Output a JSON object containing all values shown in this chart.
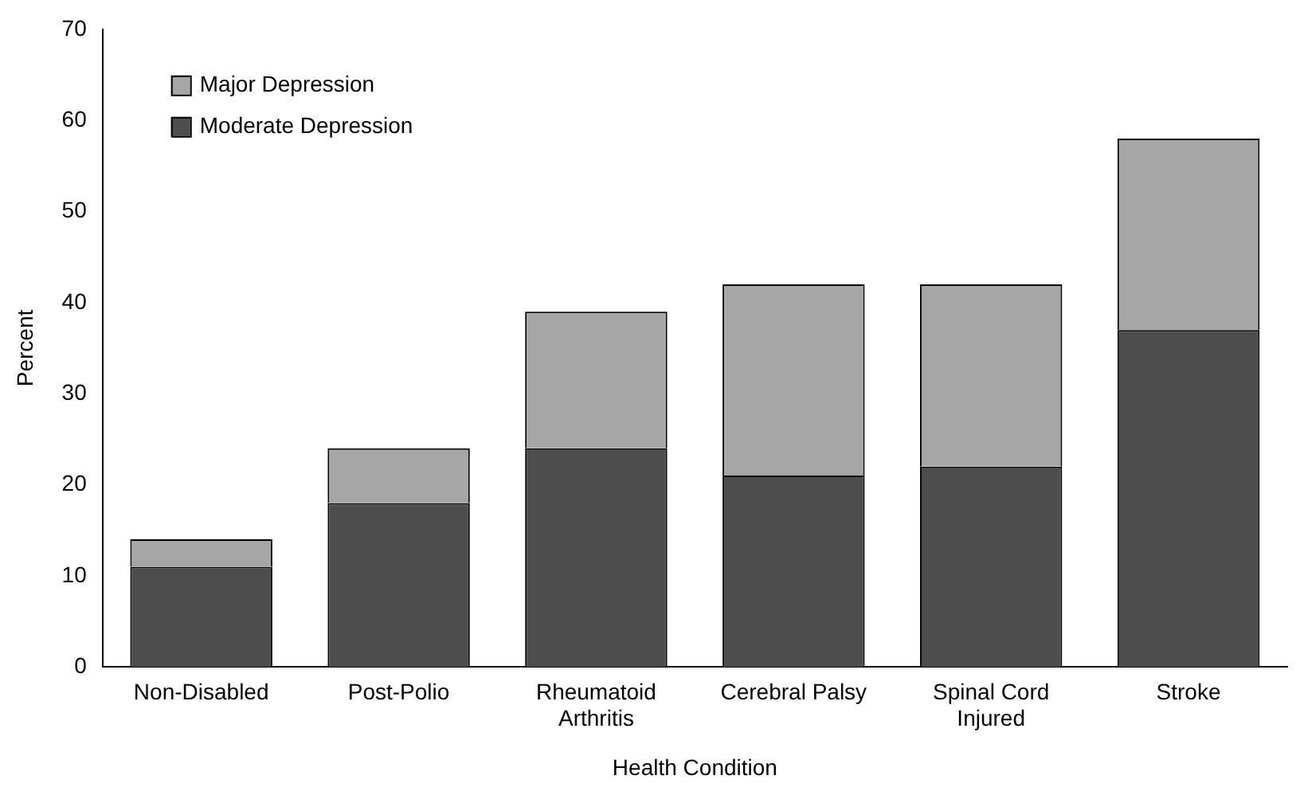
{
  "chart_data": {
    "type": "bar",
    "stacked": true,
    "xlabel": "Health Condition",
    "ylabel": "Percent",
    "categories": [
      "Non-Disabled",
      "Post-Polio",
      "Rheumatoid Arthritis",
      "Cerebral Palsy",
      "Spinal Cord Injured",
      "Stroke"
    ],
    "series": [
      {
        "name": "Moderate Depression",
        "color": "#4d4d4d",
        "values": [
          11,
          18,
          24,
          21,
          22,
          37
        ]
      },
      {
        "name": "Major Depression",
        "color": "#a6a6a6",
        "values": [
          3,
          6,
          15,
          21,
          20,
          21
        ]
      }
    ],
    "ylim": [
      0,
      70
    ],
    "yticks": [
      0,
      10,
      20,
      30,
      40,
      50,
      60,
      70
    ],
    "grid": false,
    "legend": "top left"
  }
}
